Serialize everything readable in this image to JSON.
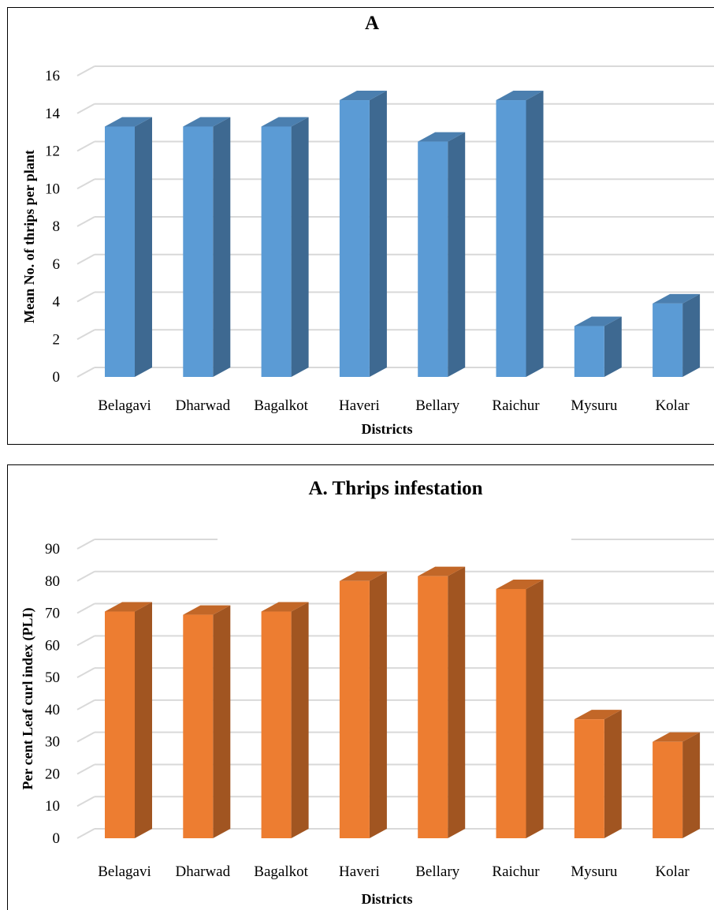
{
  "colors": {
    "blue": "#5b9bd5",
    "orange": "#ed7d31",
    "grid": "#d9d9d9"
  },
  "chart_data": [
    {
      "type": "bar",
      "title": "A",
      "xlabel": "Districts",
      "ylabel": "Mean No. of thrips per plant",
      "categories": [
        "Belagavi",
        "Dharwad",
        "Bagalkot",
        "Haveri",
        "Bellary",
        "Raichur",
        "Mysuru",
        "Kolar"
      ],
      "series": [
        {
          "values": [
            13.3,
            13.3,
            13.3,
            14.7,
            12.5,
            14.7,
            2.7,
            3.9
          ]
        }
      ],
      "ylim": [
        0,
        16
      ],
      "yticks": [
        0,
        2,
        4,
        6,
        8,
        10,
        12,
        14,
        16
      ],
      "grid": true,
      "style": "3d-column",
      "color": "#5b9bd5"
    },
    {
      "type": "bar",
      "title": "A. Thrips infestation",
      "xlabel": "Districts",
      "ylabel": "Per cent Leaf curl index (PLI)",
      "categories": [
        "Belagavi",
        "Dharwad",
        "Bagalkot",
        "Haveri",
        "Bellary",
        "Raichur",
        "Mysuru",
        "Kolar"
      ],
      "series": [
        {
          "values": [
            70.5,
            69.5,
            70.5,
            80,
            81.5,
            77.5,
            37,
            30
          ]
        }
      ],
      "ylim": [
        0,
        90
      ],
      "yticks": [
        0,
        10,
        20,
        30,
        40,
        50,
        60,
        70,
        80,
        90
      ],
      "grid": true,
      "style": "3d-column",
      "color": "#ed7d31"
    }
  ]
}
